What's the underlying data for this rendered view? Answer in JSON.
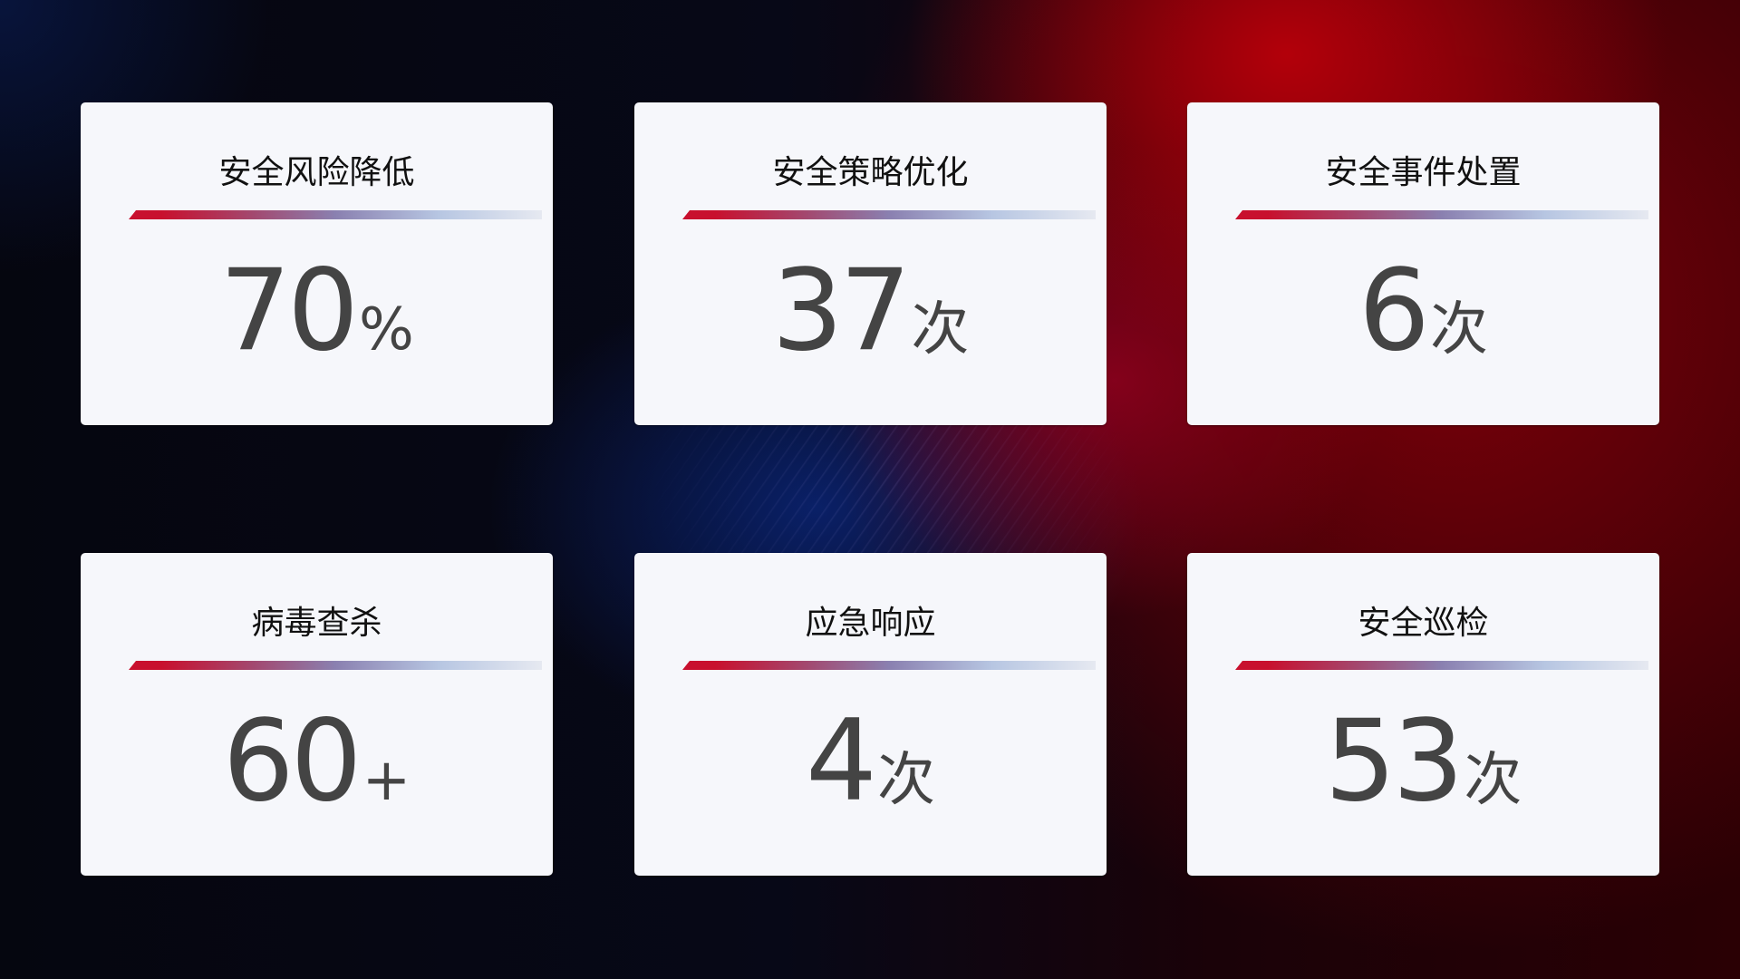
{
  "colors": {
    "accent_red": "#c8102e",
    "card_bg": "#f6f7fb",
    "number": "#444444"
  },
  "cards": [
    {
      "title": "安全风险降低",
      "value": "70",
      "unit": "%"
    },
    {
      "title": "安全策略优化",
      "value": "37",
      "unit": "次"
    },
    {
      "title": "安全事件处置",
      "value": "6",
      "unit": "次"
    },
    {
      "title": "病毒查杀",
      "value": "60",
      "unit": "+"
    },
    {
      "title": "应急响应",
      "value": "4",
      "unit": "次"
    },
    {
      "title": "安全巡检",
      "value": "53",
      "unit": "次"
    }
  ]
}
